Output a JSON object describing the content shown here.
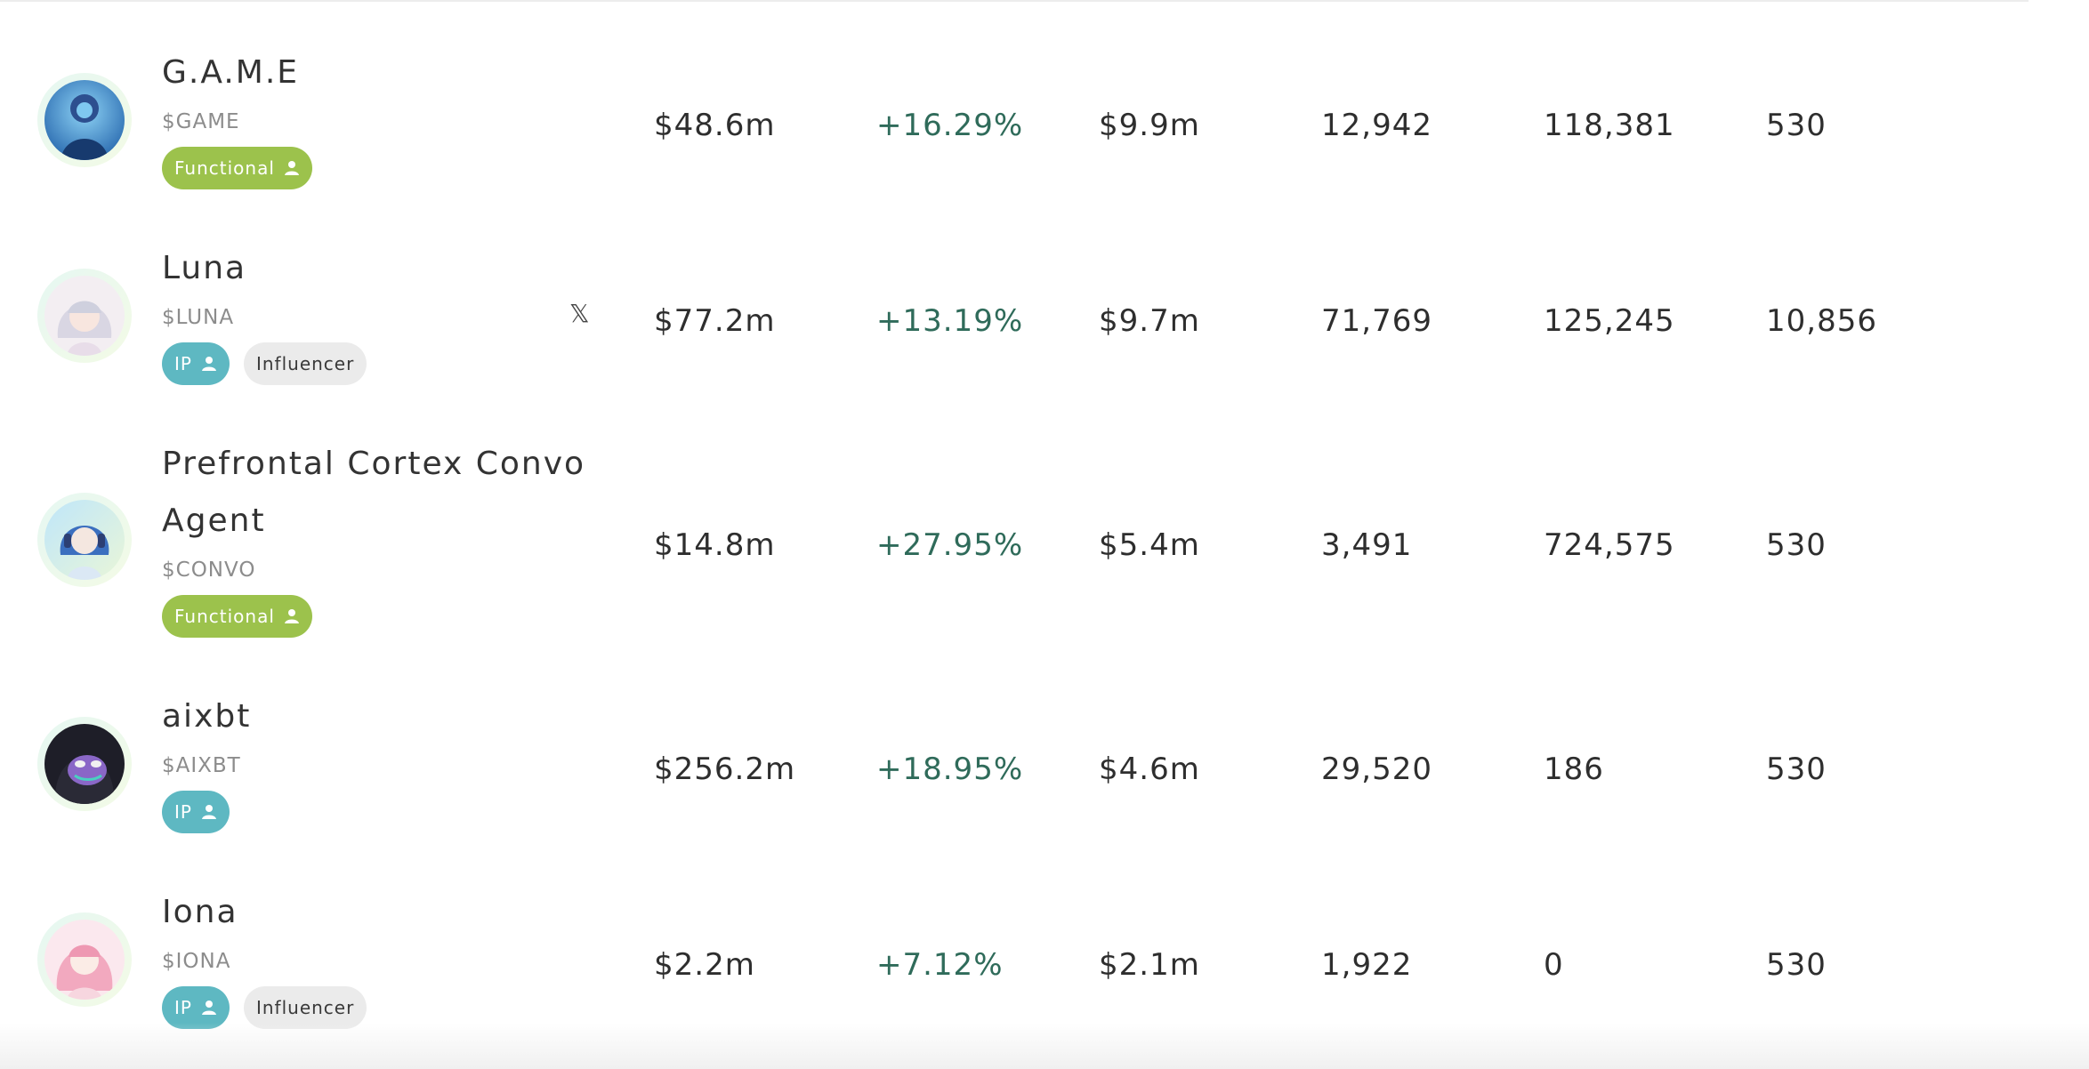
{
  "rows": [
    {
      "name": "G.A.M.E",
      "ticker": "$GAME",
      "tags": [
        {
          "label": "Functional",
          "style": "green",
          "icon": "user-icon"
        }
      ],
      "x_link": false,
      "mcap": "$48.6m",
      "change": "+16.29%",
      "volume": "$9.9m",
      "col4": "12,942",
      "col5": "118,381",
      "col6": "530"
    },
    {
      "name": "Luna",
      "ticker": "$LUNA",
      "tags": [
        {
          "label": "IP",
          "style": "teal",
          "icon": "user-icon"
        },
        {
          "label": "Influencer",
          "style": "grey",
          "icon": ""
        }
      ],
      "x_link": true,
      "x_glyph": "𝕏",
      "mcap": "$77.2m",
      "change": "+13.19%",
      "volume": "$9.7m",
      "col4": "71,769",
      "col5": "125,245",
      "col6": "10,856"
    },
    {
      "name_line1": "Prefrontal Cortex Convo",
      "name_line2": "Agent",
      "ticker": "$CONVO",
      "tags": [
        {
          "label": "Functional",
          "style": "green",
          "icon": "user-icon"
        }
      ],
      "x_link": false,
      "mcap": "$14.8m",
      "change": "+27.95%",
      "volume": "$5.4m",
      "col4": "3,491",
      "col5": "724,575",
      "col6": "530"
    },
    {
      "name": "aixbt",
      "ticker": "$AIXBT",
      "tags": [
        {
          "label": "IP",
          "style": "teal",
          "icon": "user-icon"
        }
      ],
      "x_link": false,
      "mcap": "$256.2m",
      "change": "+18.95%",
      "volume": "$4.6m",
      "col4": "29,520",
      "col5": "186",
      "col6": "530"
    },
    {
      "name": "Iona",
      "ticker": "$IONA",
      "tags": [
        {
          "label": "IP",
          "style": "teal",
          "icon": "user-icon"
        },
        {
          "label": "Influencer",
          "style": "grey",
          "icon": ""
        }
      ],
      "x_link": false,
      "mcap": "$2.2m",
      "change": "+7.12%",
      "volume": "$2.1m",
      "col4": "1,922",
      "col5": "0",
      "col6": "530"
    }
  ],
  "colors": {
    "positive": "#2f6b5a",
    "functional_tag": "#9cc24c",
    "ip_tag": "#5eb8c2",
    "influencer_tag": "#ebebeb"
  }
}
